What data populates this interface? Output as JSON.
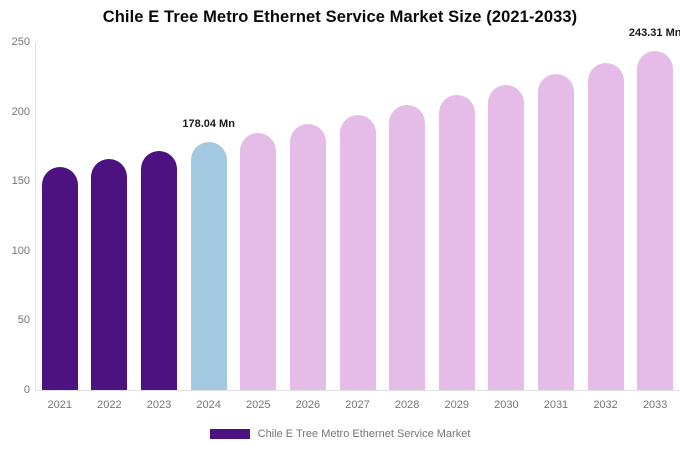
{
  "title": "Chile E Tree Metro Ethernet Service Market Size (2021-2033)",
  "chart_data": {
    "type": "bar",
    "title": "Chile E Tree Metro Ethernet Service Market Size (2021-2033)",
    "categories": [
      "2021",
      "2022",
      "2023",
      "2024",
      "2025",
      "2026",
      "2027",
      "2028",
      "2029",
      "2030",
      "2031",
      "2032",
      "2033"
    ],
    "values": [
      160.3,
      166.0,
      171.9,
      178.04,
      184.3,
      190.8,
      197.5,
      204.5,
      211.7,
      219.2,
      226.9,
      234.9,
      243.31
    ],
    "unit": "Mn",
    "ylim": [
      0,
      250
    ],
    "yticks": [
      0,
      50,
      100,
      150,
      200,
      250
    ],
    "grid": false,
    "legend_position": "bottom",
    "bar_colors": [
      "#4B1280",
      "#4B1280",
      "#4B1280",
      "#A3C9E0",
      "#E5BCE7",
      "#E5BCE7",
      "#E5BCE7",
      "#E5BCE7",
      "#E5BCE7",
      "#E5BCE7",
      "#E5BCE7",
      "#E5BCE7",
      "#E5BCE7"
    ],
    "color_roles": {
      "historical": "#4B1280",
      "current_year": "#A3C9E0",
      "forecast": "#E5BCE7"
    },
    "annotations": [
      {
        "category": "2024",
        "text": "178.04 Mn"
      },
      {
        "category": "2033",
        "text": "243.31 Mn"
      }
    ]
  },
  "legend": {
    "label": "Chile E Tree Metro Ethernet Service Market",
    "swatch_color": "#4B1280"
  },
  "axis": {
    "line_color": "#e0e0e0",
    "tick_color": "#757575"
  }
}
